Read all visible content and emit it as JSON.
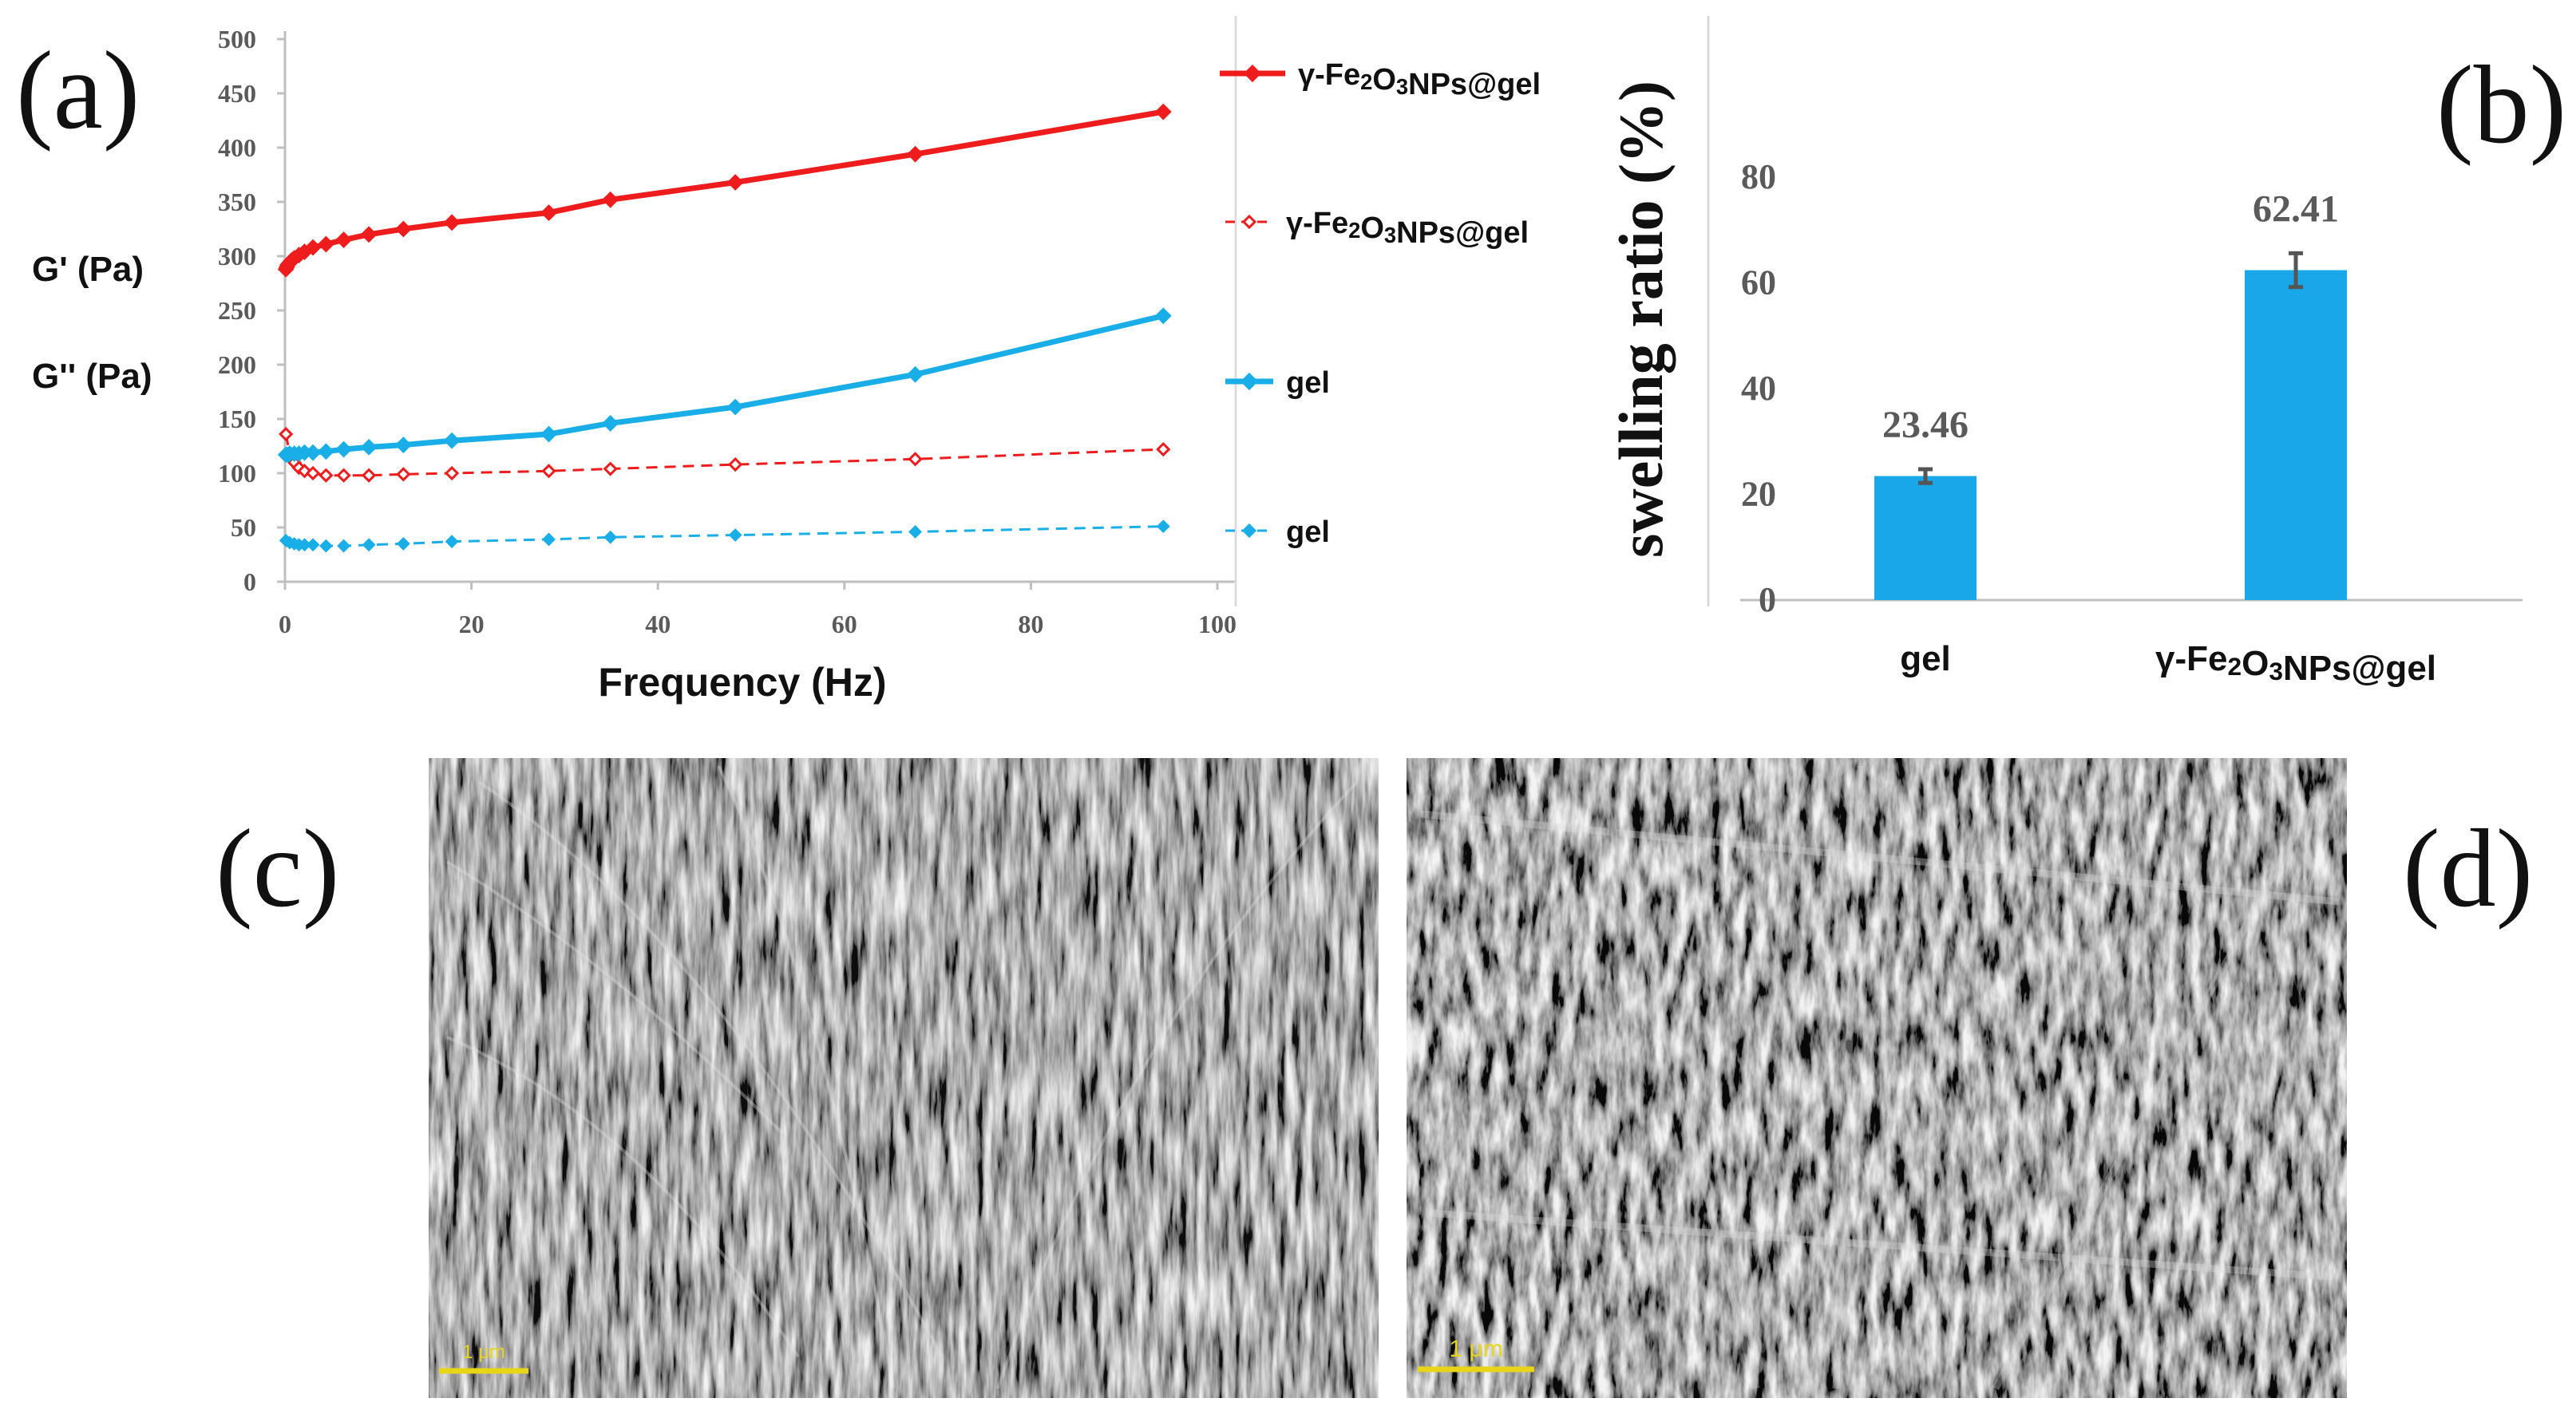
{
  "panels": {
    "a": {
      "label": "(a)"
    },
    "b": {
      "label": "(b)"
    },
    "c": {
      "label": "(c)",
      "scale_bar": "1 μm"
    },
    "d": {
      "label": "(d)",
      "scale_bar": "1 μm"
    }
  },
  "colors": {
    "red": "#ee1c1c",
    "blue": "#19aee8",
    "bar": "#1aa7ea",
    "axis_text": "#5a5a5a",
    "scale_bar": "#e8d51a"
  },
  "chart_data": [
    {
      "type": "line",
      "ylabel_lines": [
        "G' (Pa)",
        "G'' (Pa)"
      ],
      "xlabel": "Frequency (Hz)",
      "xlim": [
        0,
        100
      ],
      "ylim": [
        0,
        500
      ],
      "x_ticks": [
        0,
        20,
        40,
        60,
        80,
        100
      ],
      "y_ticks": [
        0,
        50,
        100,
        150,
        200,
        250,
        300,
        350,
        400,
        450,
        500
      ],
      "legend_position": "right",
      "series": [
        {
          "name": "γ-Fe₂O₃NPs@gel",
          "style": "solid",
          "marker": "diamond",
          "color": "#ee1c1c",
          "x": [
            0.1,
            0.2,
            0.3,
            0.5,
            0.7,
            1.0,
            1.5,
            2.1,
            3.0,
            4.4,
            6.3,
            9.0,
            12.7,
            17.9,
            28.3,
            34.9,
            48.3,
            67.6,
            94.2
          ],
          "y": [
            288,
            290,
            292,
            294,
            296,
            298,
            301,
            304,
            308,
            311,
            315,
            320,
            325,
            331,
            340,
            352,
            368,
            394,
            433
          ]
        },
        {
          "name": "γ-Fe₂O₃NPs@gel",
          "style": "dashed",
          "marker": "open-diamond",
          "color": "#ee1c1c",
          "x": [
            0.1,
            0.5,
            1.0,
            1.5,
            2.1,
            3.0,
            4.4,
            6.3,
            9.0,
            12.7,
            17.9,
            28.3,
            34.9,
            48.3,
            67.6,
            94.2
          ],
          "y": [
            136,
            118,
            110,
            105,
            102,
            100,
            98,
            98,
            98,
            99,
            100,
            102,
            104,
            108,
            113,
            122
          ]
        },
        {
          "name": "gel",
          "style": "solid",
          "marker": "diamond",
          "color": "#19aee8",
          "x": [
            0.1,
            0.3,
            0.5,
            1.0,
            1.5,
            2.1,
            3.0,
            4.4,
            6.3,
            9.0,
            12.7,
            17.9,
            28.3,
            34.9,
            48.3,
            67.6,
            94.2
          ],
          "y": [
            117,
            117,
            118,
            118,
            118,
            119,
            119,
            120,
            122,
            124,
            126,
            130,
            136,
            146,
            161,
            191,
            245
          ]
        },
        {
          "name": "gel",
          "style": "dashed",
          "marker": "diamond",
          "color": "#19aee8",
          "x": [
            0.1,
            0.5,
            1.0,
            1.5,
            2.1,
            3.0,
            4.4,
            6.3,
            9.0,
            12.7,
            17.9,
            28.3,
            34.9,
            48.3,
            67.6,
            94.2
          ],
          "y": [
            38,
            36,
            35,
            34,
            34,
            34,
            33,
            33,
            34,
            35,
            37,
            39,
            41,
            43,
            46,
            51
          ]
        }
      ]
    },
    {
      "type": "bar",
      "categories": [
        "gel",
        "γ-Fe₂O₃NPs@gel"
      ],
      "values": [
        23.46,
        62.41
      ],
      "value_labels": [
        "23.46",
        "62.41"
      ],
      "error": [
        1.3,
        3.2
      ],
      "ylabel": "swelling ratio (%)",
      "ylim": [
        0,
        80
      ],
      "y_ticks": [
        0,
        20,
        40,
        60,
        80
      ],
      "color": "#1aa7ea"
    }
  ]
}
